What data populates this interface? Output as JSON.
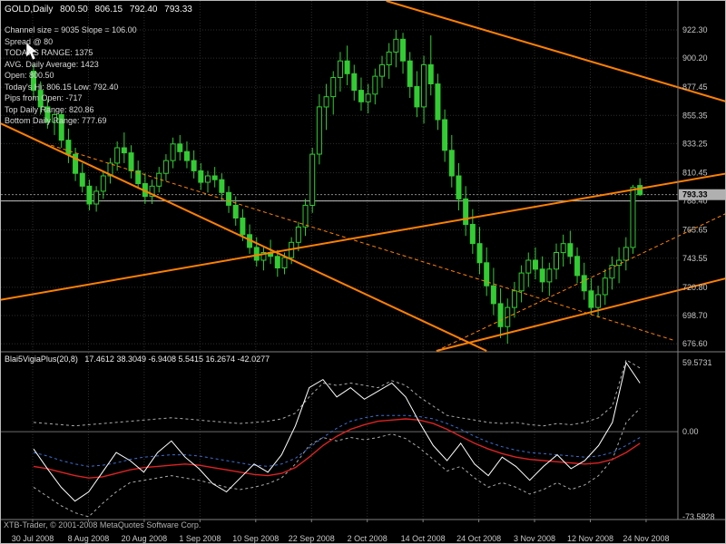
{
  "header": {
    "symbol": "GOLD,Daily",
    "open": "800.50",
    "high": "806.15",
    "low": "792.40",
    "close": "793.33"
  },
  "info_panel": {
    "lines": [
      "Channel size = 9035 Slope = 106.00",
      "Spread @ 80",
      "TODAY'S RANGE: 1375",
      "AVG. Daily Average: 1423",
      "Open: 800.50",
      "Today's Hi: 806.15  Low: 792.40",
      "Pips from Open: -717",
      "Top Daily Range: 820.86",
      "Bottom Daily Range: 777.69"
    ]
  },
  "indicator_header": {
    "name": "Blai5VigiaPlus(20,8)",
    "values": "17.4612 38.3049 -6.9408 5.5415 16.2674 -42.0277"
  },
  "footer": {
    "copyright": "XTB-Trader, © 2001-2008 MetaQuotes Software Corp."
  },
  "colors": {
    "background": "#000000",
    "grid": "#2d2d2d",
    "candle": "#33cc33",
    "bull_fill": "#000000",
    "bear_fill": "#33cc33",
    "trend": "#ff8000",
    "axis_text": "#c8c8c8",
    "separator": "#808080",
    "bid_badge_bg": "#b0b0b0",
    "bid_badge_text": "#000000",
    "zero_line": "#6a6a6a"
  },
  "chart_data": [
    {
      "type": "candlestick",
      "title": "GOLD,Daily",
      "y_range": [
        671,
        945
      ],
      "y_ticks": [
        "922.30",
        "900.20",
        "877.45",
        "855.35",
        "833.25",
        "810.45",
        "788.40",
        "765.65",
        "743.55",
        "720.80",
        "698.70",
        "676.60"
      ],
      "x_labels": [
        "30 Jul 2008",
        "8 Aug 2008",
        "20 Aug 2008",
        "1 Sep 2008",
        "10 Sep 2008",
        "22 Sep 2008",
        "2 Oct 2008",
        "14 Oct 2008",
        "24 Oct 2008",
        "3 Nov 2008",
        "12 Nov 2008",
        "24 Nov 2008"
      ],
      "current_price": "793.33",
      "horizontal_lines": [
        {
          "price": 788.4,
          "color": "#c0c0c0",
          "style": "solid"
        },
        {
          "price": 793.33,
          "color": "#888888",
          "style": "dot"
        }
      ],
      "trendlines": [
        {
          "from": [
            50.6,
            945
          ],
          "to": [
            99.5,
            866
          ],
          "dash": false
        },
        {
          "from": [
            -4.7,
            849
          ],
          "to": [
            65,
            671
          ],
          "dash": false
        },
        {
          "from": [
            -4.7,
            711
          ],
          "to": [
            99.5,
            810
          ],
          "dash": false
        },
        {
          "from": [
            57.8,
            671
          ],
          "to": [
            99.5,
            728
          ],
          "dash": false
        },
        {
          "from": [
            2.5,
            832
          ],
          "to": [
            92,
            679
          ],
          "dash": true
        },
        {
          "from": [
            57.8,
            671
          ],
          "to": [
            99.5,
            779
          ],
          "dash": true
        }
      ],
      "candles": [
        [
          890,
          895,
          868,
          875
        ],
        [
          875,
          882,
          856,
          862
        ],
        [
          862,
          868,
          845,
          850
        ],
        [
          850,
          860,
          840,
          856
        ],
        [
          856,
          858,
          830,
          836
        ],
        [
          836,
          845,
          818,
          825
        ],
        [
          825,
          830,
          804,
          810
        ],
        [
          810,
          818,
          795,
          800
        ],
        [
          800,
          805,
          781,
          786
        ],
        [
          786,
          800,
          780,
          796
        ],
        [
          796,
          812,
          790,
          808
        ],
        [
          808,
          822,
          802,
          818
        ],
        [
          818,
          835,
          812,
          830
        ],
        [
          830,
          842,
          818,
          826
        ],
        [
          826,
          832,
          806,
          812
        ],
        [
          812,
          820,
          798,
          802
        ],
        [
          802,
          810,
          786,
          792
        ],
        [
          792,
          805,
          786,
          800
        ],
        [
          800,
          815,
          795,
          810
        ],
        [
          810,
          825,
          804,
          820
        ],
        [
          820,
          838,
          814,
          833
        ],
        [
          833,
          840,
          820,
          827
        ],
        [
          827,
          835,
          814,
          820
        ],
        [
          820,
          828,
          806,
          812
        ],
        [
          812,
          818,
          797,
          803
        ],
        [
          803,
          812,
          795,
          808
        ],
        [
          808,
          815,
          799,
          805
        ],
        [
          805,
          810,
          789,
          795
        ],
        [
          795,
          800,
          779,
          785
        ],
        [
          785,
          792,
          769,
          775
        ],
        [
          775,
          782,
          757,
          762
        ],
        [
          762,
          770,
          747,
          752
        ],
        [
          752,
          760,
          737,
          742
        ],
        [
          742,
          752,
          734,
          748
        ],
        [
          748,
          758,
          739,
          745
        ],
        [
          745,
          750,
          729,
          736
        ],
        [
          736,
          748,
          731,
          744
        ],
        [
          744,
          760,
          739,
          756
        ],
        [
          756,
          772,
          749,
          768
        ],
        [
          768,
          790,
          761,
          785
        ],
        [
          785,
          830,
          779,
          825
        ],
        [
          825,
          872,
          817,
          862
        ],
        [
          862,
          880,
          844,
          870
        ],
        [
          870,
          890,
          856,
          885
        ],
        [
          885,
          905,
          874,
          898
        ],
        [
          898,
          910,
          879,
          888
        ],
        [
          888,
          895,
          867,
          875
        ],
        [
          875,
          885,
          859,
          866
        ],
        [
          866,
          880,
          857,
          872
        ],
        [
          872,
          892,
          864,
          886
        ],
        [
          886,
          902,
          877,
          895
        ],
        [
          895,
          912,
          884,
          905
        ],
        [
          905,
          922.3,
          893,
          915
        ],
        [
          915,
          920,
          888,
          898
        ],
        [
          898,
          905,
          869,
          878
        ],
        [
          878,
          890,
          854,
          862
        ],
        [
          862,
          902,
          849,
          895
        ],
        [
          895,
          918,
          871,
          880
        ],
        [
          880,
          888,
          844,
          852
        ],
        [
          852,
          860,
          819,
          828
        ],
        [
          828,
          840,
          799,
          808
        ],
        [
          808,
          818,
          781,
          790
        ],
        [
          790,
          800,
          761,
          770
        ],
        [
          770,
          782,
          747,
          755
        ],
        [
          755,
          768,
          731,
          740
        ],
        [
          740,
          752,
          714,
          722
        ],
        [
          722,
          736,
          699,
          708
        ],
        [
          708,
          720,
          681,
          690
        ],
        [
          690,
          712,
          676.6,
          705
        ],
        [
          705,
          725,
          697,
          718
        ],
        [
          718,
          738,
          709,
          732
        ],
        [
          732,
          748,
          721,
          742
        ],
        [
          742,
          752,
          727,
          735
        ],
        [
          735,
          745,
          717,
          725
        ],
        [
          725,
          740,
          714,
          735
        ],
        [
          735,
          755,
          727,
          748
        ],
        [
          748,
          762,
          737,
          755
        ],
        [
          755,
          765,
          739,
          745
        ],
        [
          745,
          752,
          724,
          730
        ],
        [
          730,
          740,
          711,
          718
        ],
        [
          718,
          728,
          699,
          705
        ],
        [
          705,
          722,
          697,
          715
        ],
        [
          715,
          735,
          707,
          728
        ],
        [
          728,
          745,
          719,
          738
        ],
        [
          738,
          752,
          724,
          742
        ],
        [
          742,
          760,
          734,
          752
        ],
        [
          752,
          801,
          747,
          799
        ],
        [
          800.5,
          806.15,
          792.4,
          793.33
        ]
      ]
    },
    {
      "type": "line",
      "title": "Blai5VigiaPlus(20,8)",
      "y_range": [
        -75.9,
        68.2
      ],
      "y_ticks": [
        "59.5731",
        "0.00",
        "-73.5828"
      ],
      "series": [
        {
          "name": "band-upper",
          "color": "#aaaaaa",
          "dash": true,
          "width": 1,
          "values": [
            8,
            7,
            6,
            5,
            6,
            7,
            8,
            9,
            10,
            11,
            12,
            11,
            10,
            9,
            8,
            7,
            8,
            9,
            11,
            16,
            30,
            42,
            40,
            42,
            40,
            38,
            44,
            40,
            30,
            22,
            14,
            12,
            10,
            8,
            7,
            8,
            6,
            5,
            7,
            6,
            8,
            12,
            22,
            62,
            55
          ]
        },
        {
          "name": "band-lower",
          "color": "#aaaaaa",
          "dash": true,
          "width": 1,
          "values": [
            -48,
            -56,
            -64,
            -70,
            -73.5828,
            -62,
            -52,
            -44,
            -42,
            -40,
            -38,
            -40,
            -42,
            -45,
            -48,
            -50,
            -48,
            -45,
            -40,
            -28,
            -12,
            -5,
            -8,
            -5,
            -7,
            -5,
            -2,
            -6,
            -14,
            -24,
            -34,
            -30,
            -40,
            -48,
            -44,
            -48,
            -54,
            -50,
            -44,
            -50,
            -46,
            -38,
            -24,
            8,
            20
          ]
        },
        {
          "name": "signal-blue",
          "color": "#3b6fd4",
          "dash": true,
          "width": 1,
          "values": [
            -18,
            -21,
            -25,
            -28,
            -30,
            -29,
            -27,
            -24,
            -22,
            -21,
            -20,
            -20,
            -21,
            -23,
            -25,
            -27,
            -29,
            -30,
            -28,
            -23,
            -14,
            -5,
            3,
            9,
            12,
            14,
            14,
            14,
            13,
            11,
            7,
            2,
            -4,
            -9,
            -13,
            -16,
            -18,
            -19,
            -20,
            -21,
            -22,
            -21,
            -18,
            -12,
            -5
          ]
        },
        {
          "name": "signal-red",
          "color": "#dd2222",
          "dash": false,
          "width": 1.4,
          "values": [
            -30,
            -32,
            -35,
            -38,
            -40,
            -39,
            -36,
            -33,
            -31,
            -30,
            -29,
            -28,
            -29,
            -31,
            -33,
            -35,
            -37,
            -38,
            -36,
            -31,
            -22,
            -12,
            -4,
            2,
            6,
            9,
            10,
            11,
            10,
            7,
            2,
            -4,
            -10,
            -15,
            -19,
            -22,
            -24,
            -25,
            -26,
            -27,
            -28,
            -27,
            -24,
            -18,
            -10
          ]
        },
        {
          "name": "vigia-main",
          "color": "#ffffff",
          "dash": false,
          "width": 1,
          "values": [
            -15,
            -32,
            -48,
            -60,
            -52,
            -35,
            -18,
            -25,
            -35,
            -18,
            -8,
            -22,
            -32,
            -45,
            -52,
            -40,
            -28,
            -35,
            -20,
            5,
            38,
            45,
            30,
            38,
            28,
            35,
            42,
            30,
            8,
            -12,
            -25,
            -10,
            -28,
            -38,
            -22,
            -30,
            -42,
            -30,
            -20,
            -32,
            -25,
            -12,
            8,
            59.5731,
            42
          ]
        }
      ]
    }
  ]
}
